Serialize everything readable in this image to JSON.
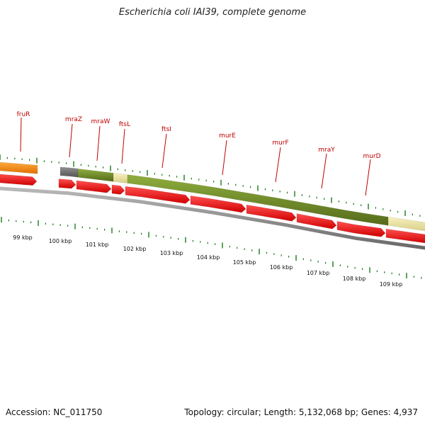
{
  "title": "Escherichia coli IAI39, complete genome",
  "footer": {
    "accession": "Accession: NC_011750",
    "summary": "Topology: circular; Length: 5,132,068 bp; Genes: 4,937"
  },
  "colors": {
    "gene_label": "#c00000",
    "cds": "#ff1a1a",
    "operon_green": "#6b8e23",
    "operon_yellow": "#eee8aa",
    "operon_orange": "#ff8c00",
    "operon_gray": "#707070",
    "tick": "#1a7a1a",
    "backbone": "#888888"
  },
  "genes": [
    {
      "name": "fruR"
    },
    {
      "name": "mraZ"
    },
    {
      "name": "mraW"
    },
    {
      "name": "ftsL"
    },
    {
      "name": "ftsI"
    },
    {
      "name": "murE"
    },
    {
      "name": "murF"
    },
    {
      "name": "mraY"
    },
    {
      "name": "murD"
    }
  ],
  "ruler": [
    {
      "label": "99 kbp"
    },
    {
      "label": "100 kbp"
    },
    {
      "label": "101 kbp"
    },
    {
      "label": "102 kbp"
    },
    {
      "label": "103 kbp"
    },
    {
      "label": "104 kbp"
    },
    {
      "label": "105 kbp"
    },
    {
      "label": "106 kbp"
    },
    {
      "label": "107 kbp"
    },
    {
      "label": "108 kbp"
    },
    {
      "label": "109 kbp"
    }
  ]
}
